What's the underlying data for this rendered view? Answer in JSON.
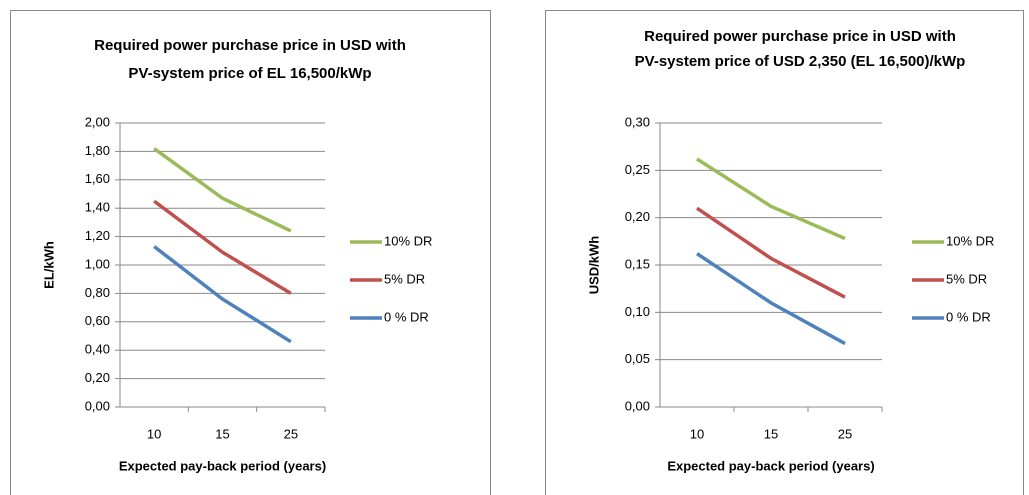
{
  "chart_data": [
    {
      "type": "line",
      "title": [
        "Required power purchase price in USD with",
        "PV-system price of EL 16,500/kWp"
      ],
      "y_label": "EL/kWh",
      "x_label": "Expected pay-back period (years)",
      "categories": [
        "10",
        "15",
        "25"
      ],
      "series": [
        {
          "name": "10% DR",
          "color": "#9bbb59",
          "values": [
            1.82,
            1.47,
            1.24
          ]
        },
        {
          "name": "5%  DR",
          "color": "#c0504d",
          "values": [
            1.45,
            1.09,
            0.8
          ]
        },
        {
          "name": "0 % DR",
          "color": "#4f81bd",
          "values": [
            1.13,
            0.76,
            0.46
          ]
        }
      ],
      "ylim": [
        0,
        2
      ],
      "yticks": [
        {
          "value": 0,
          "label": "0,00"
        },
        {
          "value": 0.2,
          "label": "0,20"
        },
        {
          "value": 0.4,
          "label": "0,40"
        },
        {
          "value": 0.6,
          "label": "0,60"
        },
        {
          "value": 0.8,
          "label": "0,80"
        },
        {
          "value": 1,
          "label": "1,00"
        },
        {
          "value": 1.2,
          "label": "1,20"
        },
        {
          "value": 1.4,
          "label": "1,40"
        },
        {
          "value": 1.6,
          "label": "1,60"
        },
        {
          "value": 1.8,
          "label": "1,80"
        },
        {
          "value": 2,
          "label": "2,00"
        }
      ],
      "grid": true,
      "legend": "right"
    },
    {
      "type": "line",
      "title": [
        "Required power purchase price in USD with",
        "PV-system price of  USD 2,350  (EL 16,500)/kWp"
      ],
      "y_label": "USD/kWh",
      "x_label": "Expected pay-back  period (years)",
      "categories": [
        "10",
        "15",
        "25"
      ],
      "series": [
        {
          "name": "10% DR",
          "color": "#9bbb59",
          "values": [
            0.262,
            0.212,
            0.178
          ]
        },
        {
          "name": "5% DR",
          "color": "#c0504d",
          "values": [
            0.21,
            0.157,
            0.116
          ]
        },
        {
          "name": "0 % DR",
          "color": "#4f81bd",
          "values": [
            0.162,
            0.11,
            0.067
          ]
        }
      ],
      "ylim": [
        0,
        0.3
      ],
      "yticks": [
        {
          "value": 0,
          "label": "0,00"
        },
        {
          "value": 0.05,
          "label": "0,05"
        },
        {
          "value": 0.1,
          "label": "0,10"
        },
        {
          "value": 0.15,
          "label": "0,15"
        },
        {
          "value": 0.2,
          "label": "0,20"
        },
        {
          "value": 0.25,
          "label": "0,25"
        },
        {
          "value": 0.3,
          "label": "0,30"
        }
      ],
      "grid": true,
      "legend": "right"
    }
  ]
}
